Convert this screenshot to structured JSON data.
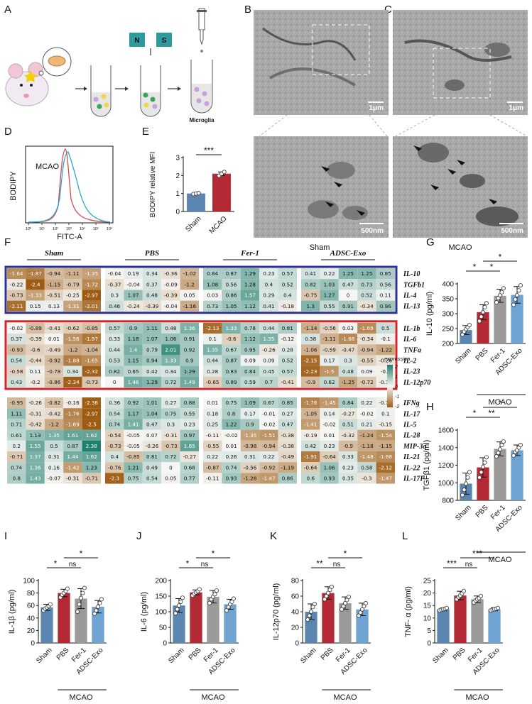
{
  "panels": {
    "A": "A",
    "B": "B",
    "C": "C",
    "D": "D",
    "E": "E",
    "F": "F",
    "G": "G",
    "H": "H",
    "I": "I",
    "J": "J",
    "K": "K",
    "L": "L"
  },
  "schematic": {
    "chip_left": "N",
    "chip_right": "S",
    "result_label": "Microglia"
  },
  "em": {
    "scale_top": "1μm",
    "scale_bottom": "500nm",
    "label_sham": "Sham",
    "label_mcao": "MCAO"
  },
  "flow": {
    "ylabel": "BODIPY",
    "xlabel": "FITC-A",
    "legend": "MCAO",
    "ticks": [
      "10⁰",
      "10¹",
      "10²",
      "10³",
      "10⁴",
      "10⁵",
      "10⁶"
    ]
  },
  "colors": {
    "sham": "#5b86b0",
    "pbs": "#b32a35",
    "fer1": "#9a9a9a",
    "adsc": "#6fa3d2",
    "hmLow": "#9e5c13",
    "hmMid": "#f6f6f4",
    "hmHigh": "#1e7d6c",
    "boxBlue": "#2e3192",
    "boxRed": "#d3242b"
  },
  "chart_data": [
    {
      "panel": "E",
      "type": "bar",
      "ylabel": "BODIPY relative MFI",
      "categories": [
        "Sham",
        "MCAO"
      ],
      "values": [
        1.0,
        2.1
      ],
      "errors": [
        0.03,
        0.1
      ],
      "points": [
        [
          0.97,
          1.0,
          1.02
        ],
        [
          1.99,
          2.1,
          2.2
        ]
      ],
      "ylim": [
        0,
        3
      ],
      "yticks": [
        0,
        1,
        2,
        3
      ],
      "sig": [
        {
          "from": 0,
          "to": 1,
          "label": "***"
        }
      ]
    },
    {
      "panel": "F",
      "type": "heatmap",
      "groups": [
        "Sham",
        "PBS",
        "Fer-1",
        "ADSC-Exo"
      ],
      "legend_title": "expression",
      "legend_ticks": [
        "2",
        "1",
        "0",
        "-1",
        "-2"
      ],
      "genes": [
        "IL-10",
        "TGFb1",
        "IL-4",
        "IL-13",
        "IL-1b",
        "IL-6",
        "TNFa",
        "IL-2",
        "IL-23",
        "IL-12p70",
        "IFNg",
        "IL-17",
        "IL-5",
        "IL-28",
        "MIP-3a",
        "IL-21",
        "IL-22",
        "IL-17F"
      ],
      "values": [
        [
          -1.64,
          -1.87,
          -0.94,
          -1.11,
          -1.35,
          -0.04,
          0.19,
          0.34,
          -0.36,
          -1.02,
          0.84,
          0.87,
          1.29,
          0.23,
          0.57,
          0.41,
          0.22,
          1.25,
          1.25,
          0.85
        ],
        [
          -0.22,
          -2.4,
          -1.15,
          -0.79,
          -1.72,
          -0.37,
          -0.04,
          0.37,
          -0.09,
          -1.2,
          1.08,
          0.56,
          1.28,
          0.4,
          0.52,
          0.82,
          1.03,
          0.47,
          0.73,
          0.56
        ],
        [
          -0.73,
          -1.33,
          -0.51,
          -0.25,
          -2.97,
          0.3,
          1.07,
          0.48,
          -0.39,
          0.05,
          0.03,
          0.86,
          1.57,
          0.29,
          0.4,
          -0.75,
          1.27,
          0,
          0.52,
          0.11
        ],
        [
          -2.11,
          0.15,
          0.13,
          -1.31,
          -2.01,
          0.46,
          -0.24,
          -0.39,
          -0.04,
          -1.16,
          0.73,
          1.05,
          1.12,
          0.41,
          -0.18,
          1.3,
          0.55,
          0.91,
          -0.34,
          0.96
        ],
        [
          -0.02,
          -0.89,
          -0.41,
          -0.62,
          -0.85,
          0.57,
          0.9,
          1.11,
          0.48,
          1.36,
          -2.13,
          1.33,
          0.78,
          0.44,
          0.81,
          -1.14,
          -0.56,
          0.03,
          -1.69,
          0.5
        ],
        [
          0.37,
          -0.39,
          0.01,
          -1.56,
          -1.97,
          0.33,
          1.18,
          1.07,
          1.06,
          0.91,
          0.1,
          -0.6,
          1.12,
          1.35,
          -0.12,
          0.38,
          -1.11,
          -1.68,
          -0.34,
          -0.1
        ],
        [
          -0.93,
          -0.6,
          -0.49,
          -1.2,
          -1.04,
          0.44,
          1.4,
          0.79,
          2.01,
          0.92,
          1.35,
          0.67,
          0.95,
          -0.26,
          0.28,
          -1.06,
          -0.59,
          -0.47,
          -0.94,
          -1.22
        ],
        [
          0.54,
          -0.44,
          -0.92,
          -1.88,
          -1.65,
          0.53,
          1.15,
          0.94,
          1.33,
          0.9,
          0.44,
          0.87,
          0.09,
          0.09,
          0.52,
          -2.15,
          0.17,
          0.3,
          -0.55,
          -0.26
        ],
        [
          -0.58,
          0.11,
          -0.78,
          0.34,
          -2.32,
          0.82,
          0.65,
          0.42,
          0.34,
          1.29,
          0.28,
          0.83,
          0.84,
          0.45,
          0.57,
          -2.23,
          -1.5,
          0.48,
          0.09,
          -0.1
        ],
        [
          0.43,
          -0.2,
          -0.86,
          -2.34,
          -0.73,
          0,
          1.46,
          1.29,
          0.72,
          1.49,
          -0.65,
          0.89,
          0.59,
          0.7,
          -0.41,
          -0.9,
          0.62,
          -1.25,
          -0.72,
          -0.14
        ],
        [
          -0.95,
          -0.26,
          -0.82,
          -0.16,
          -2.36,
          0.36,
          0.92,
          1.01,
          0.27,
          0.88,
          0.01,
          0.75,
          1.09,
          0.67,
          0.85,
          -1.76,
          -1.45,
          0.84,
          0.22,
          -0.13
        ],
        [
          1.11,
          -0.31,
          -0.42,
          -1.76,
          -2.97,
          0.54,
          1.17,
          1.04,
          0.75,
          0.55,
          0.18,
          0.8,
          0.17,
          -0.01,
          0.27,
          -1.05,
          0.14,
          -0.27,
          -0.02,
          0.1
        ],
        [
          0.71,
          -0.42,
          -1.2,
          -1.69,
          -2.5,
          0.74,
          1.41,
          0.47,
          0.3,
          0.23,
          0.25,
          1.22,
          0.9,
          -0.02,
          0.47,
          -1.41,
          -0.02,
          0.51,
          0.21,
          -0.15
        ],
        [
          0.61,
          1.13,
          1.35,
          1.61,
          1.62,
          -0.54,
          -0.05,
          0.07,
          -0.31,
          0.97,
          -0.11,
          -0.02,
          -1.35,
          -1.51,
          -0.38,
          -0.19,
          0.01,
          -0.32,
          -1.24,
          -1.54
        ],
        [
          0.2,
          1.55,
          0.5,
          0.87,
          2.38,
          -0.73,
          -0.05,
          -0.26,
          -0.73,
          1.65,
          -0.55,
          0.01,
          -0.98,
          -0.94,
          -0.38,
          0.42,
          0.23,
          -0.9,
          -1.18,
          -1.15
        ],
        [
          -0.71,
          1.37,
          0.31,
          1.44,
          1.62,
          0.4,
          -0.85,
          0.81,
          0.72,
          -0.27,
          0.22,
          0.26,
          0.31,
          0.22,
          -0.49,
          -1.91,
          -0.64,
          0.33,
          -1.48,
          -1.68
        ],
        [
          0.74,
          1.36,
          0.16,
          -1.42,
          1.23,
          -0.76,
          1.21,
          0.49,
          0,
          0.68,
          -0.87,
          0.74,
          -0.56,
          -0.92,
          -1.19,
          -0.64,
          1.06,
          0.23,
          0.58,
          -2.12
        ],
        [
          0.8,
          1.43,
          -0.07,
          -0.31,
          -0.71,
          -2.3,
          0.75,
          0.54,
          0.05,
          0.77,
          -0.11,
          0.93,
          -1.28,
          -1.47,
          0.86,
          0.6,
          0.93,
          0.35,
          -0.3,
          -1.47
        ]
      ]
    },
    {
      "panel": "G",
      "type": "bar",
      "ylabel": "IL-10  (pg/ml)",
      "categories": [
        "Sham",
        "PBS",
        "Fer-1",
        "ADSC-Exo"
      ],
      "values": [
        245,
        305,
        360,
        363
      ],
      "errors": [
        15,
        25,
        22,
        28
      ],
      "ylim": [
        200,
        400
      ],
      "yticks": [
        200,
        250,
        300,
        350,
        400
      ],
      "group_label": "MCAO",
      "points": [
        [
          230,
          240,
          248,
          255,
          262
        ],
        [
          275,
          290,
          305,
          322,
          335
        ],
        [
          338,
          352,
          362,
          372,
          385
        ],
        [
          330,
          348,
          362,
          378,
          395
        ]
      ],
      "sig": [
        {
          "from": 0,
          "to": 1,
          "label": "*"
        },
        {
          "from": 1,
          "to": 2,
          "label": "*"
        },
        {
          "from": 1,
          "to": 3,
          "label": "*"
        }
      ]
    },
    {
      "panel": "H",
      "type": "bar",
      "ylabel": "TGFβ1  (pg/ml)",
      "categories": [
        "Sham",
        "PBS",
        "Fer-1",
        "ADSC-Exo"
      ],
      "values": [
        990,
        1175,
        1385,
        1370
      ],
      "errors": [
        120,
        110,
        80,
        60
      ],
      "ylim": [
        800,
        1600
      ],
      "yticks": [
        800,
        1000,
        1200,
        1400,
        1600
      ],
      "group_label": "MCAO",
      "points": [
        [
          860,
          920,
          990,
          1060,
          1120
        ],
        [
          1060,
          1120,
          1180,
          1230,
          1290
        ],
        [
          1300,
          1340,
          1380,
          1430,
          1470
        ],
        [
          1310,
          1350,
          1370,
          1400,
          1430
        ]
      ],
      "sig": [
        {
          "from": 0,
          "to": 1,
          "label": "*"
        },
        {
          "from": 1,
          "to": 2,
          "label": "**"
        },
        {
          "from": 1,
          "to": 3,
          "label": "*"
        }
      ]
    },
    {
      "panel": "I",
      "type": "bar",
      "ylabel": "IL-1β  (pg/ml)",
      "categories": [
        "Sham",
        "PBS",
        "Fer-1",
        "ADSC-Exo"
      ],
      "values": [
        57,
        80,
        71,
        58
      ],
      "errors": [
        5,
        6,
        16,
        10
      ],
      "ylim": [
        0,
        100
      ],
      "yticks": [
        0,
        20,
        40,
        60,
        80,
        100
      ],
      "group_label": "MCAO",
      "points": [
        [
          52,
          55,
          57,
          59,
          62
        ],
        [
          73,
          77,
          80,
          83,
          87
        ],
        [
          50,
          62,
          72,
          80,
          88
        ],
        [
          47,
          52,
          58,
          64,
          70
        ]
      ],
      "sig": [
        {
          "from": 0,
          "to": 1,
          "label": "*"
        },
        {
          "from": 1,
          "to": 2,
          "label": "ns"
        },
        {
          "from": 1,
          "to": 3,
          "label": "*"
        }
      ]
    },
    {
      "panel": "J",
      "type": "bar",
      "ylabel": "IL-6 (pg/ml)",
      "categories": [
        "Sham",
        "PBS",
        "Fer-1",
        "ADSC-Exo"
      ],
      "values": [
        120,
        162,
        148,
        124
      ],
      "errors": [
        22,
        8,
        20,
        16
      ],
      "ylim": [
        0,
        200
      ],
      "yticks": [
        0,
        50,
        100,
        150,
        200
      ],
      "group_label": "MCAO",
      "points": [
        [
          95,
          108,
          120,
          132,
          145
        ],
        [
          152,
          158,
          162,
          166,
          172
        ],
        [
          128,
          140,
          148,
          156,
          168
        ],
        [
          104,
          115,
          124,
          132,
          142
        ]
      ],
      "sig": [
        {
          "from": 0,
          "to": 1,
          "label": "*"
        },
        {
          "from": 1,
          "to": 2,
          "label": "ns"
        },
        {
          "from": 1,
          "to": 3,
          "label": "*"
        }
      ]
    },
    {
      "panel": "K",
      "type": "bar",
      "ylabel": "IL-12p70 (pg/ml)",
      "categories": [
        "Sham",
        "PBS",
        "Fer-1",
        "ADSC-Exo"
      ],
      "values": [
        40,
        64,
        51,
        43
      ],
      "errors": [
        10,
        8,
        8,
        8
      ],
      "ylim": [
        0,
        80
      ],
      "yticks": [
        0,
        20,
        40,
        60,
        80
      ],
      "group_label": "MCAO",
      "points": [
        [
          30,
          35,
          40,
          46,
          50
        ],
        [
          56,
          60,
          64,
          68,
          72
        ],
        [
          43,
          47,
          51,
          55,
          59
        ],
        [
          35,
          39,
          43,
          47,
          51
        ]
      ],
      "sig": [
        {
          "from": 0,
          "to": 1,
          "label": "**"
        },
        {
          "from": 1,
          "to": 2,
          "label": "ns"
        },
        {
          "from": 1,
          "to": 3,
          "label": "*"
        }
      ]
    },
    {
      "panel": "L",
      "type": "bar",
      "ylabel": "TNF- α (pg/ml)",
      "categories": [
        "Sham",
        "PBS",
        "Fer-1",
        "ADSC-Exo"
      ],
      "values": [
        13.5,
        19,
        17.5,
        13.5
      ],
      "errors": [
        0.5,
        1.7,
        1.3,
        0.6
      ],
      "ylim": [
        0,
        25
      ],
      "yticks": [
        0,
        5,
        10,
        15,
        20,
        25
      ],
      "group_label": "MCAO",
      "points": [
        [
          13.0,
          13.3,
          13.5,
          13.7,
          14.0
        ],
        [
          17.5,
          18.3,
          19.0,
          19.8,
          20.8
        ],
        [
          16.2,
          17.0,
          17.5,
          18.0,
          18.8
        ],
        [
          13.0,
          13.3,
          13.5,
          13.7,
          14.0
        ]
      ],
      "sig": [
        {
          "from": 0,
          "to": 1,
          "label": "***"
        },
        {
          "from": 1,
          "to": 2,
          "label": "ns"
        },
        {
          "from": 1,
          "to": 3,
          "label": "***"
        }
      ]
    }
  ]
}
